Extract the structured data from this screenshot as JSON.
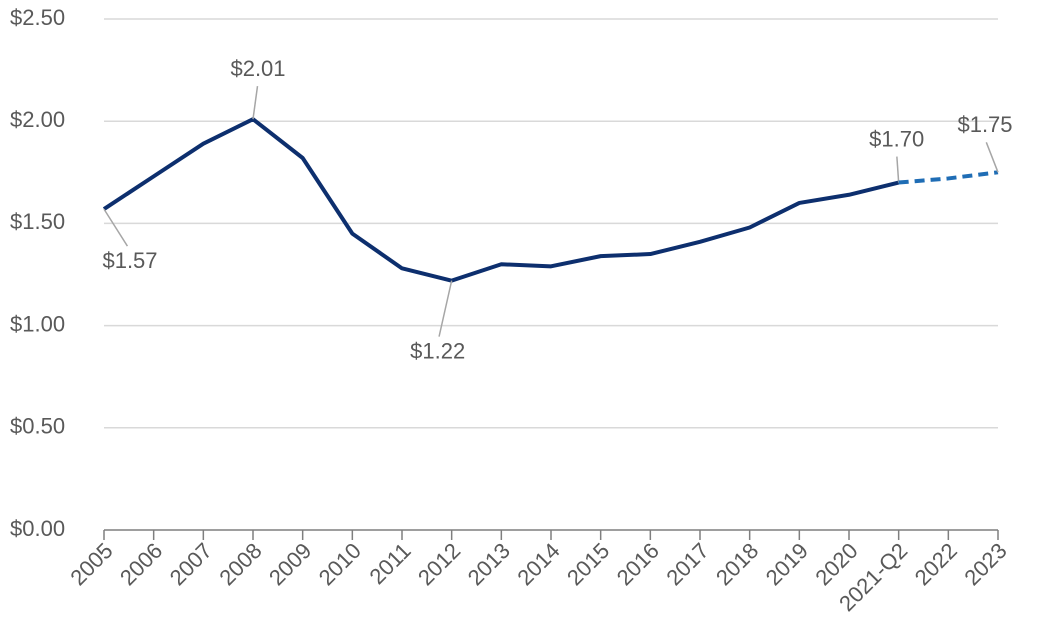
{
  "chart_data": {
    "type": "line",
    "categories": [
      "2005",
      "2006",
      "2007",
      "2008",
      "2009",
      "2010",
      "2011",
      "2012",
      "2013",
      "2014",
      "2015",
      "2016",
      "2017",
      "2018",
      "2019",
      "2020",
      "2021-Q2",
      "2022",
      "2023"
    ],
    "series": [
      {
        "color": "#0d2f6e",
        "dashed": false,
        "values": [
          1.57,
          1.73,
          1.89,
          2.01,
          1.82,
          1.45,
          1.28,
          1.22,
          1.3,
          1.29,
          1.34,
          1.35,
          1.41,
          1.48,
          1.6,
          1.64,
          1.7,
          null,
          null
        ],
        "value_labels": [
          "$1.57",
          null,
          null,
          "$2.01",
          null,
          null,
          null,
          "$1.22",
          null,
          null,
          null,
          null,
          null,
          null,
          null,
          null,
          "$1.70",
          null,
          null
        ]
      },
      {
        "color": "#1f6db5",
        "dashed": true,
        "values": [
          null,
          null,
          null,
          null,
          null,
          null,
          null,
          null,
          null,
          null,
          null,
          null,
          null,
          null,
          null,
          null,
          1.7,
          1.72,
          1.75
        ],
        "value_labels": [
          null,
          null,
          null,
          null,
          null,
          null,
          null,
          null,
          null,
          null,
          null,
          null,
          null,
          null,
          null,
          null,
          null,
          null,
          "$1.75"
        ]
      }
    ],
    "ylim": [
      0,
      2.5
    ],
    "yticks": [
      {
        "value": 0,
        "label": "$0.00"
      },
      {
        "value": 0.5,
        "label": "$0.50"
      },
      {
        "value": 1,
        "label": "$1.00"
      },
      {
        "value": 1.5,
        "label": "$1.50"
      },
      {
        "value": 2,
        "label": "$2.00"
      },
      {
        "value": 2.5,
        "label": "$2.50"
      }
    ],
    "grid": true
  }
}
